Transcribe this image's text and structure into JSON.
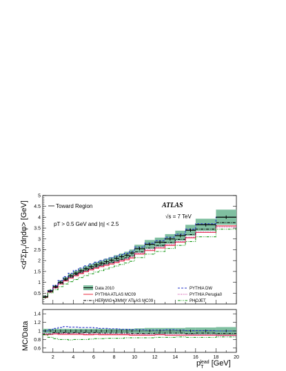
{
  "colors": {
    "data_band": "#7fbfa0",
    "data_point": "#000000",
    "pythia_mc09": "#e8243a",
    "herwig_jimmy": "#000000",
    "pythia_dw": "#2633c9",
    "pythia_perugia0": "#c2188f",
    "phojet": "#1a9a1a"
  },
  "annotations": {
    "region": "Toward Region",
    "experiment": "ATLAS",
    "energy": "√s = 7 TeV",
    "cuts": "pT > 0.5  GeV and |η| < 2.5"
  },
  "chart_data": [
    {
      "name": "main",
      "type": "line",
      "ylabel": "<d²ΣpT/dηdφ> [GeV]",
      "xlim": [
        1,
        20
      ],
      "ylim": [
        0,
        5
      ],
      "x_ticks": [
        2,
        4,
        6,
        8,
        10,
        12,
        14,
        16,
        18,
        20
      ],
      "y_ticks": [
        0.5,
        1,
        1.5,
        2,
        2.5,
        3,
        3.5,
        4,
        4.5,
        5
      ],
      "y_tick_labels": [
        "0.5",
        "1",
        "1.5",
        "2",
        "2.5",
        "3",
        "3.5",
        "4",
        "4.5",
        "5"
      ],
      "bin_edges": [
        1.0,
        1.5,
        2.0,
        2.5,
        3.0,
        3.5,
        4.0,
        4.5,
        5.0,
        5.5,
        6.0,
        6.5,
        7.0,
        7.5,
        8.0,
        8.5,
        9.0,
        9.5,
        10.0,
        11.0,
        12.0,
        13.0,
        14.0,
        15.0,
        16.0,
        18.0,
        20.0
      ],
      "data": {
        "name": "Data 2010",
        "values": [
          0.33,
          0.6,
          0.8,
          1.0,
          1.15,
          1.3,
          1.42,
          1.53,
          1.63,
          1.72,
          1.8,
          1.88,
          1.95,
          2.02,
          2.1,
          2.18,
          2.25,
          2.35,
          2.55,
          2.75,
          2.85,
          3.0,
          3.15,
          3.4,
          3.65,
          4.0
        ],
        "band_half_width": [
          0.05,
          0.06,
          0.07,
          0.08,
          0.09,
          0.1,
          0.11,
          0.11,
          0.12,
          0.12,
          0.13,
          0.13,
          0.14,
          0.14,
          0.15,
          0.15,
          0.16,
          0.16,
          0.18,
          0.2,
          0.21,
          0.22,
          0.23,
          0.25,
          0.28,
          0.35
        ]
      },
      "series": [
        {
          "name": "PYTHIA ATLAS MC09",
          "style": "solid",
          "x": [
            1.25,
            1.75,
            2.25,
            2.75,
            3.25,
            3.75,
            4.25,
            4.75,
            5.25,
            5.75,
            6.25,
            6.75,
            7.25,
            7.75,
            8.25,
            8.75,
            9.25,
            9.75,
            10.5,
            11.5,
            12.5,
            13.5,
            14.5,
            15.5,
            17.0,
            19.0
          ],
          "values": [
            0.3,
            0.55,
            0.74,
            0.92,
            1.06,
            1.19,
            1.3,
            1.4,
            1.49,
            1.57,
            1.65,
            1.72,
            1.78,
            1.84,
            1.91,
            1.98,
            2.04,
            2.12,
            2.3,
            2.46,
            2.58,
            2.7,
            2.85,
            3.05,
            3.3,
            3.6
          ]
        },
        {
          "name": "HERWIG+JIMMY ATLAS MC09",
          "style": "dashdot",
          "x": [
            1.25,
            1.75,
            2.25,
            2.75,
            3.25,
            3.75,
            4.25,
            4.75,
            5.25,
            5.75,
            6.25,
            6.75,
            7.25,
            7.75,
            8.25,
            8.75,
            9.25,
            9.75,
            10.5,
            11.5,
            12.5,
            13.5,
            14.5,
            15.5,
            17.0,
            19.0
          ],
          "values": [
            0.3,
            0.56,
            0.77,
            0.95,
            1.1,
            1.24,
            1.36,
            1.46,
            1.56,
            1.64,
            1.72,
            1.79,
            1.86,
            1.92,
            1.99,
            2.06,
            2.13,
            2.21,
            2.4,
            2.58,
            2.7,
            2.84,
            2.98,
            3.2,
            3.45,
            3.75
          ]
        },
        {
          "name": "PYTHIA DW",
          "style": "dashed",
          "x": [
            1.25,
            1.75,
            2.25,
            2.75,
            3.25,
            3.75,
            4.25,
            4.75,
            5.25,
            5.75,
            6.25,
            6.75,
            7.25,
            7.75,
            8.25,
            8.75,
            9.25,
            9.75,
            10.5,
            11.5,
            12.5,
            13.5,
            14.5,
            15.5,
            17.0,
            19.0
          ],
          "values": [
            0.33,
            0.62,
            0.85,
            1.08,
            1.26,
            1.42,
            1.55,
            1.66,
            1.76,
            1.85,
            1.93,
            2.0,
            2.07,
            2.13,
            2.2,
            2.27,
            2.34,
            2.42,
            2.62,
            2.8,
            2.92,
            3.08,
            3.22,
            3.45,
            3.7,
            4.0
          ]
        },
        {
          "name": "PYTHIA Perugia0",
          "style": "dotted",
          "x": [
            1.25,
            1.75,
            2.25,
            2.75,
            3.25,
            3.75,
            4.25,
            4.75,
            5.25,
            5.75,
            6.25,
            6.75,
            7.25,
            7.75,
            8.25,
            8.75,
            9.25,
            9.75,
            10.5,
            11.5,
            12.5,
            13.5,
            14.5,
            15.5,
            17.0,
            19.0
          ],
          "values": [
            0.31,
            0.56,
            0.75,
            0.93,
            1.08,
            1.21,
            1.33,
            1.43,
            1.52,
            1.6,
            1.68,
            1.75,
            1.82,
            1.88,
            1.95,
            2.02,
            2.09,
            2.16,
            2.34,
            2.5,
            2.62,
            2.74,
            2.88,
            3.08,
            3.32,
            3.55
          ]
        },
        {
          "name": "PHOJET",
          "style": "dashdot2",
          "x": [
            1.25,
            1.75,
            2.25,
            2.75,
            3.25,
            3.75,
            4.25,
            4.75,
            5.25,
            5.75,
            6.25,
            6.75,
            7.25,
            7.75,
            8.25,
            8.75,
            9.25,
            9.75,
            10.5,
            11.5,
            12.5,
            13.5,
            14.5,
            15.5,
            17.0,
            19.0
          ],
          "values": [
            0.3,
            0.51,
            0.66,
            0.8,
            0.92,
            1.03,
            1.13,
            1.22,
            1.31,
            1.39,
            1.47,
            1.54,
            1.61,
            1.68,
            1.75,
            1.82,
            1.89,
            1.97,
            2.14,
            2.3,
            2.42,
            2.56,
            2.7,
            2.88,
            3.1,
            3.45
          ]
        }
      ],
      "legend": [
        "Data 2010",
        "PYTHIA ATLAS MC09",
        "HERWIG+JIMMY ATLAS MC09",
        "PYTHIA DW",
        "PYTHIA Perugia0",
        "PHOJET"
      ]
    },
    {
      "name": "ratio",
      "type": "line",
      "xlabel": "pT lead [GeV]",
      "ylabel": "MC/Data",
      "xlim": [
        1,
        20
      ],
      "ylim": [
        0.5,
        1.5
      ],
      "x_ticks": [
        2,
        4,
        6,
        8,
        10,
        12,
        14,
        16,
        18,
        20
      ],
      "y_ticks": [
        0.6,
        0.8,
        1.0,
        1.2,
        1.4
      ],
      "y_tick_labels": [
        "0.6",
        "0.8",
        "1",
        "1.2",
        "1.4"
      ],
      "band_lower": [
        0.95,
        0.95,
        0.95,
        0.95,
        0.95,
        0.95,
        0.95,
        0.95,
        0.95,
        0.95,
        0.95,
        0.95,
        0.95,
        0.95,
        0.95,
        0.95,
        0.95,
        0.95,
        0.94,
        0.93,
        0.93,
        0.93,
        0.93,
        0.92,
        0.92,
        0.91
      ],
      "band_upper": [
        1.05,
        1.05,
        1.05,
        1.05,
        1.05,
        1.05,
        1.05,
        1.05,
        1.05,
        1.05,
        1.05,
        1.05,
        1.05,
        1.05,
        1.05,
        1.05,
        1.05,
        1.05,
        1.06,
        1.07,
        1.07,
        1.07,
        1.07,
        1.08,
        1.08,
        1.09
      ],
      "x": [
        1.25,
        1.75,
        2.25,
        2.75,
        3.25,
        3.75,
        4.25,
        4.75,
        5.25,
        5.75,
        6.25,
        6.75,
        7.25,
        7.75,
        8.25,
        8.75,
        9.25,
        9.75,
        10.5,
        11.5,
        12.5,
        13.5,
        14.5,
        15.5,
        17.0,
        19.0
      ],
      "series": [
        {
          "name": "PYTHIA ATLAS MC09",
          "style": "solid",
          "values": [
            0.91,
            0.92,
            0.93,
            0.92,
            0.92,
            0.92,
            0.92,
            0.92,
            0.91,
            0.91,
            0.92,
            0.91,
            0.91,
            0.91,
            0.91,
            0.91,
            0.91,
            0.9,
            0.9,
            0.9,
            0.91,
            0.9,
            0.9,
            0.9,
            0.9,
            0.9
          ]
        },
        {
          "name": "HERWIG+JIMMY ATLAS MC09",
          "style": "dashdot",
          "values": [
            0.93,
            0.93,
            0.96,
            0.95,
            0.96,
            0.95,
            0.96,
            0.95,
            0.96,
            0.95,
            0.96,
            0.95,
            0.95,
            0.95,
            0.95,
            0.95,
            0.95,
            0.94,
            0.94,
            0.94,
            0.95,
            0.95,
            0.95,
            0.94,
            0.95,
            0.94
          ]
        },
        {
          "name": "PYTHIA DW",
          "style": "dashed",
          "values": [
            1.0,
            1.03,
            1.06,
            1.08,
            1.1,
            1.09,
            1.09,
            1.08,
            1.08,
            1.08,
            1.07,
            1.06,
            1.06,
            1.05,
            1.05,
            1.04,
            1.04,
            1.03,
            1.03,
            1.02,
            1.02,
            1.03,
            1.02,
            1.01,
            1.01,
            1.0
          ]
        },
        {
          "name": "PYTHIA Perugia0",
          "style": "dotted",
          "values": [
            0.94,
            0.93,
            0.94,
            0.93,
            0.94,
            0.93,
            0.94,
            0.93,
            0.93,
            0.93,
            0.93,
            0.93,
            0.93,
            0.93,
            0.93,
            0.93,
            0.93,
            0.92,
            0.92,
            0.91,
            0.92,
            0.91,
            0.91,
            0.91,
            0.91,
            0.89
          ]
        },
        {
          "name": "PHOJET",
          "style": "dashdot2",
          "values": [
            0.91,
            0.85,
            0.82,
            0.8,
            0.8,
            0.79,
            0.8,
            0.8,
            0.8,
            0.81,
            0.82,
            0.82,
            0.83,
            0.83,
            0.83,
            0.83,
            0.84,
            0.84,
            0.84,
            0.84,
            0.85,
            0.85,
            0.86,
            0.85,
            0.85,
            0.86
          ]
        }
      ]
    }
  ]
}
